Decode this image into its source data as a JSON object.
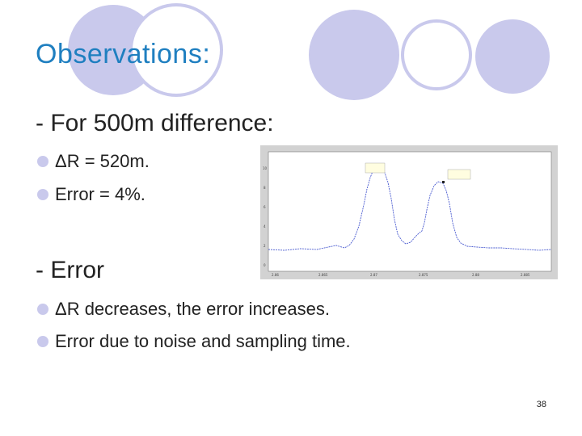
{
  "slide": {
    "title": "Observations:",
    "section1": {
      "heading": "- For 500m difference:",
      "bullets": [
        "ΔR = 520m.",
        "Error = 4%."
      ]
    },
    "section2": {
      "heading": "- Error",
      "bullets": [
        "ΔR decreases, the error increases.",
        "Error due to noise and sampling time."
      ]
    },
    "page_number": "38"
  },
  "colors": {
    "title": "#1f7fc0",
    "circle_fill": "#c9c9ec",
    "bullet": "#c9c9ec",
    "plot_line": "#4a5bd0"
  },
  "figure": {
    "x_ticks": [
      "2.86",
      "2.865",
      "2.87",
      "2.875",
      "2.88",
      "2.885"
    ],
    "y_ticks": [
      "10",
      "8",
      "6",
      "4",
      "2",
      "0"
    ]
  }
}
